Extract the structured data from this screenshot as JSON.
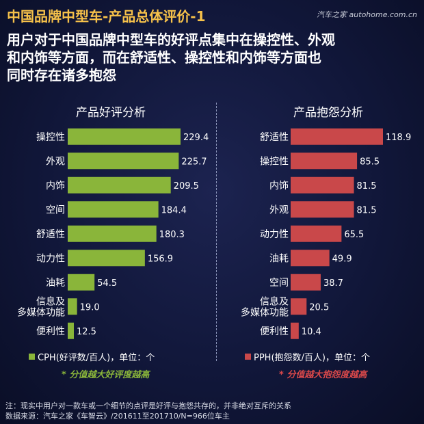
{
  "header": {
    "title": "中国品牌中型车-产品总体评价-1",
    "watermark": "汽车之家 autohome.com.cn"
  },
  "headline": {
    "line1": "用户对于中国品牌中型车的好评点集中在操控性、外观",
    "line2": "和内饰等方面，而在舒适性、操控性和内饰等方面也",
    "line3": "同时存在诸多抱怨"
  },
  "colors": {
    "green": "#8ab53a",
    "red": "#c9484a",
    "title_yellow": "#f7c24a"
  },
  "chart_data": [
    {
      "type": "bar",
      "orientation": "horizontal",
      "title": "产品好评分析",
      "categories": [
        "操控性",
        "外观",
        "内饰",
        "空间",
        "舒适性",
        "动力性",
        "油耗",
        "信息及多媒体功能",
        "便利性"
      ],
      "category_lines": [
        [
          "操控性"
        ],
        [
          "外观"
        ],
        [
          "内饰"
        ],
        [
          "空间"
        ],
        [
          "舒适性"
        ],
        [
          "动力性"
        ],
        [
          "油耗"
        ],
        [
          "信息及",
          "多媒体功能"
        ],
        [
          "便利性"
        ]
      ],
      "values": [
        229.4,
        225.7,
        209.5,
        184.4,
        180.3,
        156.9,
        54.5,
        19.0,
        12.5
      ],
      "value_labels": [
        "229.4",
        "225.7",
        "209.5",
        "184.4",
        "180.3",
        "156.9",
        "54.5",
        "19.0",
        "12.5"
      ],
      "legend": "CPH(好评数/百人)，单位：个",
      "note": "* 分值越大好评度越高",
      "color": "#8ab53a"
    },
    {
      "type": "bar",
      "orientation": "horizontal",
      "title": "产品抱怨分析",
      "categories": [
        "舒适性",
        "操控性",
        "内饰",
        "外观",
        "动力性",
        "油耗",
        "空间",
        "信息及多媒体功能",
        "便利性"
      ],
      "category_lines": [
        [
          "舒适性"
        ],
        [
          "操控性"
        ],
        [
          "内饰"
        ],
        [
          "外观"
        ],
        [
          "动力性"
        ],
        [
          "油耗"
        ],
        [
          "空间"
        ],
        [
          "信息及",
          "多媒体功能"
        ],
        [
          "便利性"
        ]
      ],
      "values": [
        118.9,
        85.5,
        81.5,
        81.5,
        65.5,
        49.9,
        38.7,
        20.5,
        10.4
      ],
      "value_labels": [
        "118.9",
        "85.5",
        "81.5",
        "81.5",
        "65.5",
        "49.9",
        "38.7",
        "20.5",
        "10.4"
      ],
      "legend": "PPH(抱怨数/百人)，单位：个",
      "note": "* 分值越大抱怨度越高",
      "color": "#c9484a"
    }
  ],
  "footnote": {
    "line1": "注：现实中用户对一款车或一个细节的点评是好评与抱怨共存的，并非绝对互斥的关系",
    "line2": "数据来源：汽车之家《车智云》/201611至201710/N=966位车主"
  }
}
